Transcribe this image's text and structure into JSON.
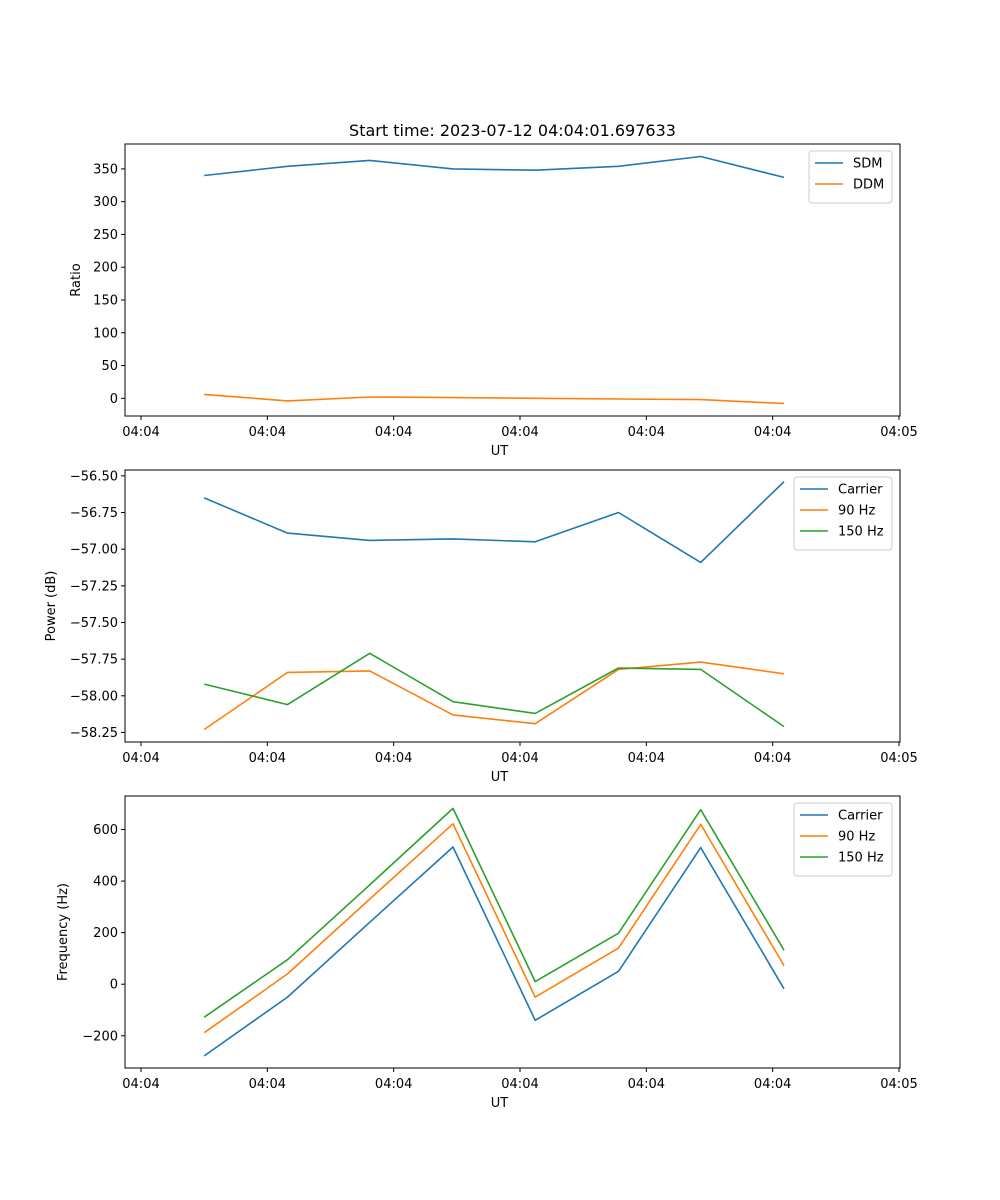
{
  "figure_title": "Start time: 2023-07-12 04:04:01.697633",
  "chart_data": [
    {
      "type": "line",
      "title": "Start time: 2023-07-12 04:04:01.697633",
      "xlabel": "UT",
      "ylabel": "Ratio",
      "xlim": [
        0,
        6
      ],
      "ylim": [
        -27,
        388
      ],
      "yticks": [
        0,
        50,
        100,
        150,
        200,
        250,
        300,
        350
      ],
      "yticklabels": [
        "0",
        "50",
        "100",
        "150",
        "200",
        "250",
        "300",
        "350"
      ],
      "xticks": [
        0,
        1,
        2,
        3,
        4,
        5,
        6
      ],
      "xticklabels": [
        "04:04",
        "04:04",
        "04:04",
        "04:04",
        "04:04",
        "04:04",
        "04:05"
      ],
      "x": [
        0.5,
        1.16,
        1.81,
        2.47,
        3.12,
        3.78,
        4.43,
        5.09
      ],
      "legend_position": "top-right",
      "series": [
        {
          "name": "SDM",
          "color": "#1f77b4",
          "values": [
            340,
            354,
            363,
            350,
            348,
            354,
            369,
            337
          ]
        },
        {
          "name": "DDM",
          "color": "#ff7f0e",
          "values": [
            6,
            -4,
            2,
            1,
            0,
            -1,
            -2,
            -8
          ]
        }
      ]
    },
    {
      "type": "line",
      "title": "",
      "xlabel": "UT",
      "ylabel": "Power (dB)",
      "xlim": [
        0,
        6
      ],
      "ylim": [
        -58.315,
        -56.46
      ],
      "yticks": [
        -58.25,
        -58.0,
        -57.75,
        -57.5,
        -57.25,
        -57.0,
        -56.75,
        -56.5
      ],
      "yticklabels": [
        "−58.25",
        "−58.00",
        "−57.75",
        "−57.50",
        "−57.25",
        "−57.00",
        "−56.75",
        "−56.50"
      ],
      "xticks": [
        0,
        1,
        2,
        3,
        4,
        5,
        6
      ],
      "xticklabels": [
        "04:04",
        "04:04",
        "04:04",
        "04:04",
        "04:04",
        "04:04",
        "04:05"
      ],
      "x": [
        0.5,
        1.16,
        1.81,
        2.47,
        3.12,
        3.78,
        4.43,
        5.09
      ],
      "legend_position": "top-right",
      "series": [
        {
          "name": "Carrier",
          "color": "#1f77b4",
          "values": [
            -56.65,
            -56.89,
            -56.94,
            -56.93,
            -56.95,
            -56.75,
            -57.09,
            -56.54
          ]
        },
        {
          "name": "90 Hz",
          "color": "#ff7f0e",
          "values": [
            -58.23,
            -57.84,
            -57.83,
            -58.13,
            -58.19,
            -57.82,
            -57.77,
            -57.85
          ]
        },
        {
          "name": "150 Hz",
          "color": "#2ca02c",
          "values": [
            -57.92,
            -58.06,
            -57.71,
            -58.04,
            -58.12,
            -57.81,
            -57.82,
            -58.21
          ]
        }
      ]
    },
    {
      "type": "line",
      "title": "",
      "xlabel": "UT",
      "ylabel": "Frequency (Hz)",
      "xlim": [
        0,
        6
      ],
      "ylim": [
        -325,
        730
      ],
      "yticks": [
        -200,
        0,
        200,
        400,
        600
      ],
      "yticklabels": [
        "−200",
        "0",
        "200",
        "400",
        "600"
      ],
      "xticks": [
        0,
        1,
        2,
        3,
        4,
        5,
        6
      ],
      "xticklabels": [
        "04:04",
        "04:04",
        "04:04",
        "04:04",
        "04:04",
        "04:04",
        "04:05"
      ],
      "x": [
        0.5,
        1.16,
        1.81,
        2.47,
        3.12,
        3.78,
        4.43,
        5.09
      ],
      "legend_position": "top-right",
      "series": [
        {
          "name": "Carrier",
          "color": "#1f77b4",
          "values": [
            -278,
            -50,
            240,
            532,
            -140,
            50,
            530,
            -18
          ]
        },
        {
          "name": "90 Hz",
          "color": "#ff7f0e",
          "values": [
            -188,
            40,
            330,
            622,
            -50,
            140,
            620,
            72
          ]
        },
        {
          "name": "150 Hz",
          "color": "#2ca02c",
          "values": [
            -128,
            95,
            385,
            682,
            10,
            198,
            677,
            132
          ]
        }
      ]
    }
  ]
}
